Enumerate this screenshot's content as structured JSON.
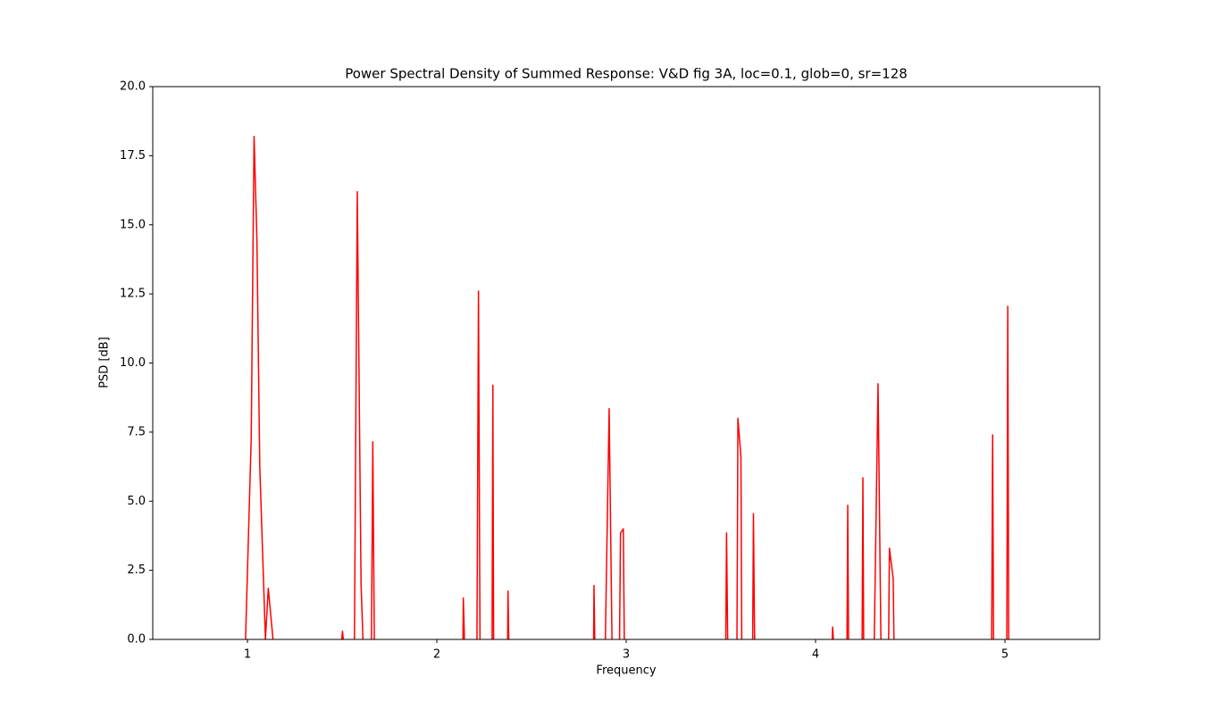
{
  "chart_data": {
    "type": "line",
    "title": "Power Spectral Density of Summed Response: V&D fig 3A, loc=0.1, glob=0, sr=128",
    "x_label": "Frequency",
    "y_label": "PSD [dB]",
    "color": "#ff0000",
    "xlim": [
      0.5,
      5.5
    ],
    "ylim": [
      0,
      20
    ],
    "xticks": [
      1,
      2,
      3,
      4,
      5
    ],
    "yticks": [
      {
        "value": 0,
        "label": "0.0"
      },
      {
        "value": 2.5,
        "label": "2.5"
      },
      {
        "value": 5,
        "label": "5.0"
      },
      {
        "value": 7.5,
        "label": "7.5"
      },
      {
        "value": 10,
        "label": "10.0"
      },
      {
        "value": 12.5,
        "label": "12.5"
      },
      {
        "value": 15,
        "label": "15.0"
      },
      {
        "value": 17.5,
        "label": "17.5"
      },
      {
        "value": 20,
        "label": "20.0"
      }
    ],
    "x": [
      0.99,
      1.02,
      1.035,
      1.05,
      1.065,
      1.095,
      1.11,
      1.135,
      null,
      1.498,
      1.502,
      1.506,
      null,
      1.565,
      1.58,
      1.6,
      1.61,
      null,
      1.655,
      1.662,
      1.67,
      null,
      2.138,
      2.14,
      2.146,
      null,
      2.212,
      2.22,
      2.228,
      null,
      2.292,
      2.296,
      2.3,
      null,
      2.374,
      2.376,
      2.38,
      null,
      2.828,
      2.83,
      2.834,
      null,
      2.89,
      2.91,
      2.925,
      null,
      2.965,
      2.97,
      2.985,
      2.99,
      null,
      3.526,
      3.53,
      3.536,
      null,
      3.585,
      3.59,
      3.606,
      3.61,
      null,
      3.668,
      3.672,
      3.678,
      null,
      4.088,
      4.09,
      4.094,
      null,
      4.166,
      4.17,
      4.174,
      null,
      4.246,
      4.25,
      4.254,
      null,
      4.31,
      4.33,
      4.345,
      null,
      4.386,
      4.39,
      4.41,
      4.414,
      null,
      4.93,
      4.935,
      4.94,
      null,
      5.01,
      5.015,
      5.02
    ],
    "values": [
      0,
      7.3,
      18.2,
      14.5,
      6.3,
      0,
      1.85,
      0,
      null,
      0,
      0.3,
      0,
      null,
      0,
      16.2,
      2,
      0,
      null,
      0,
      7.15,
      0,
      null,
      0,
      1.5,
      0,
      null,
      0,
      12.6,
      0,
      null,
      0,
      9.2,
      0,
      null,
      0,
      1.75,
      0,
      null,
      0,
      1.95,
      0,
      null,
      0,
      8.35,
      0,
      null,
      0,
      3.85,
      4.0,
      0,
      null,
      0,
      3.85,
      0,
      null,
      0,
      8.0,
      6.6,
      0,
      null,
      0,
      4.55,
      0,
      null,
      0,
      0.45,
      0,
      null,
      0,
      4.85,
      0,
      null,
      0,
      5.85,
      0,
      null,
      0,
      9.25,
      0,
      null,
      0,
      3.3,
      2.2,
      0,
      null,
      0,
      7.4,
      0,
      null,
      0,
      12.05,
      0
    ]
  }
}
